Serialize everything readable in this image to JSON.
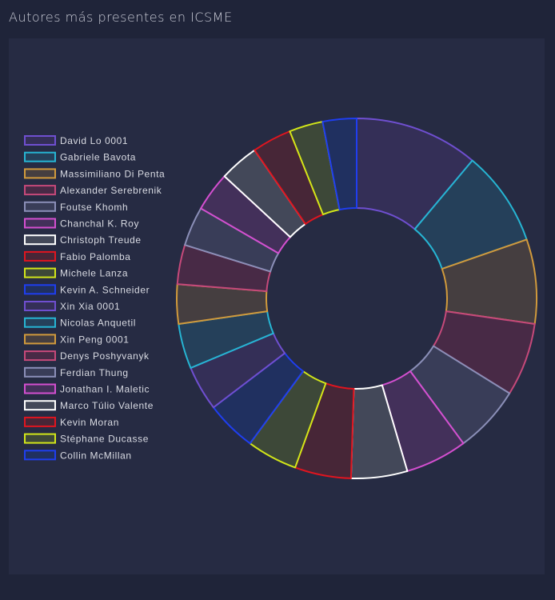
{
  "title": "Autores más presentes en ICSME",
  "chart_data": {
    "type": "pie",
    "title": "Autores más presentes en ICSME",
    "style": "donut",
    "legend": "left",
    "labels": [
      "David Lo 0001",
      "Gabriele Bavota",
      "Massimiliano Di Penta",
      "Alexander Serebrenik",
      "Foutse Khomh",
      "Chanchal K. Roy",
      "Christoph Treude",
      "Fabio Palomba",
      "Michele Lanza",
      "Kevin A. Schneider",
      "Xin Xia 0001",
      "Nicolas Anquetil",
      "Xin Peng 0001",
      "Denys Poshyvanyk",
      "Ferdian Thung",
      "Jonathan I. Maletic",
      "Marco Túlio Valente",
      "Kevin Moran",
      "Stéphane Ducasse",
      "Collin McMillan"
    ],
    "values": [
      22,
      17,
      15,
      13,
      12,
      11,
      10,
      10,
      9,
      9,
      8,
      8,
      7,
      7,
      7,
      7,
      7,
      7,
      6,
      6
    ],
    "colors": [
      "#6f4fd0",
      "#26b5d3",
      "#d19a3c",
      "#c6497a",
      "#8b8fb8",
      "#d44fd0",
      "#ffffff",
      "#e0151f",
      "#d2e619",
      "#1f3ef0",
      "#6f4fd0",
      "#26b5d3",
      "#d19a3c",
      "#c6497a",
      "#8b8fb8",
      "#d44fd0",
      "#ffffff",
      "#e0151f",
      "#d2e619",
      "#1f3ef0"
    ],
    "fills": [
      "#342f57",
      "#25405a",
      "#453e40",
      "#482a46",
      "#393d58",
      "#43305a",
      "#434859",
      "#472637",
      "#3d4838",
      "#203060",
      "#342f57",
      "#25405a",
      "#453e40",
      "#482a46",
      "#393d58",
      "#43305a",
      "#434859",
      "#472637",
      "#3d4838",
      "#203060"
    ]
  }
}
